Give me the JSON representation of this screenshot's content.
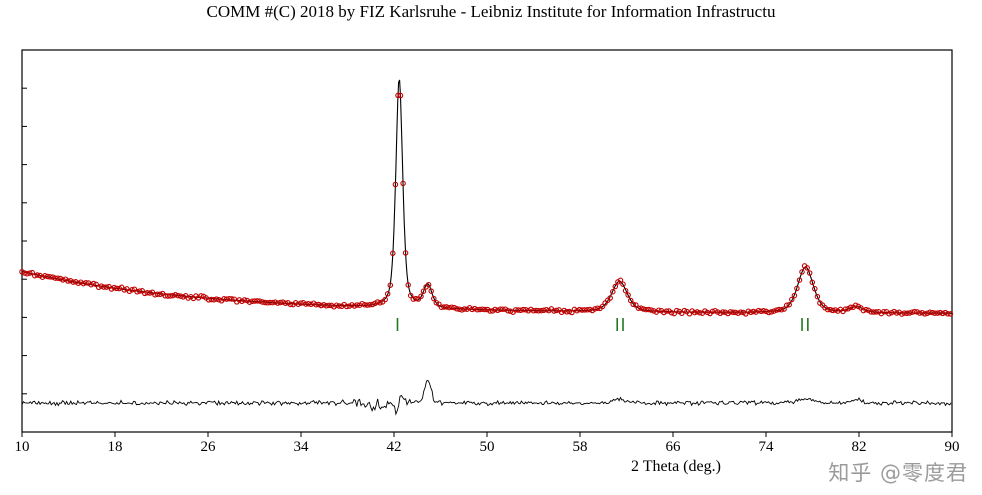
{
  "watermark": {
    "text": "知乎 @零度君"
  },
  "chart_data": {
    "type": "line",
    "title": "COMM #(C) 2018 by FIZ Karlsruhe - Leibniz Institute for Information Infrastructu",
    "subtitle": "",
    "xlabel": "2 Theta (deg.)",
    "ylabel": "",
    "x_range": [
      10,
      90
    ],
    "x_ticks": [
      10,
      18,
      26,
      34,
      42,
      50,
      58,
      66,
      74,
      82,
      90
    ],
    "y_axis": {
      "labels_shown": false,
      "minor_tick_count": 11
    },
    "intensity_scale": [
      0,
      100
    ],
    "grid": false,
    "legend": "none",
    "series": [
      {
        "name": "observed",
        "style": "open-circles",
        "color": "#c00000"
      },
      {
        "name": "calculated",
        "style": "line",
        "color": "#000000"
      },
      {
        "name": "difference",
        "style": "line",
        "color": "#000000",
        "baseline": 7.6
      },
      {
        "name": "bragg-positions",
        "style": "tick-marks",
        "color": "#1f7a1f",
        "positions": [
          42.3,
          61.2,
          61.7,
          77.1,
          77.6
        ]
      }
    ],
    "background": {
      "base": 31,
      "amp": 11,
      "decay": 0.063,
      "x0": 10
    },
    "peaks": [
      {
        "center": 42.45,
        "height": 60,
        "fwhm": 0.7
      },
      {
        "center": 44.9,
        "height": 6,
        "fwhm": 0.9
      },
      {
        "center": 61.4,
        "height": 8,
        "fwhm": 1.6
      },
      {
        "center": 77.4,
        "height": 12,
        "fwhm": 1.6
      },
      {
        "center": 81.8,
        "height": 1.5,
        "fwhm": 1.5
      }
    ],
    "difference_features": [
      {
        "center": 40.8,
        "height": -1.0,
        "width": 0.5
      },
      {
        "center": 42.2,
        "height": -3.0,
        "width": 0.22
      },
      {
        "center": 42.6,
        "height": 2.0,
        "width": 0.22
      },
      {
        "center": 44.9,
        "height": 5.5,
        "width": 0.3
      },
      {
        "center": 61.5,
        "height": 0.9,
        "width": 0.7
      },
      {
        "center": 77.4,
        "height": 1.0,
        "width": 0.7
      },
      {
        "center": 81.8,
        "height": 0.7,
        "width": 0.7
      }
    ],
    "noise": {
      "seed": 123457,
      "obs_amp": 0.55,
      "diff_amp": 0.7
    }
  }
}
